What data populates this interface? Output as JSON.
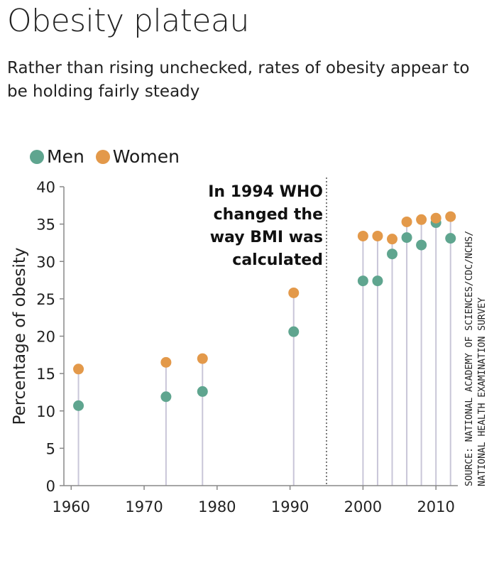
{
  "title": "Obesity plateau",
  "subtitle": "Rather than rising unchecked, rates of obesity appear to be holding fairly steady",
  "legend": {
    "men": "Men",
    "women": "Women"
  },
  "colors": {
    "men": "#5fa58f",
    "women": "#e3994a",
    "stem": "#c9c6d8",
    "axis": "#888888"
  },
  "annotation": {
    "lines": [
      "In 1994 WHO",
      "changed the",
      "way BMI was",
      "calculated"
    ],
    "x": 1995
  },
  "source": {
    "lines": [
      "SOURCE: NATIONAL ACADEMY OF SCIENCES/CDC/NCHS/",
      "NATIONAL HEALTH EXAMINATION SURVEY"
    ]
  },
  "chart_data": {
    "type": "scatter",
    "title": "Obesity plateau",
    "ylabel": "Percentage of obesity",
    "xlabel": "",
    "xlim": [
      1959,
      2013
    ],
    "ylim": [
      0,
      40
    ],
    "xticks": [
      1960,
      1970,
      1980,
      1990,
      2000,
      2010
    ],
    "yticks": [
      0,
      5,
      10,
      15,
      20,
      25,
      30,
      35,
      40
    ],
    "x": [
      1961,
      1973,
      1978,
      1990.5,
      2000,
      2002,
      2004,
      2006,
      2008,
      2010,
      2012
    ],
    "series": [
      {
        "name": "Men",
        "values": [
          10.7,
          11.9,
          12.6,
          20.6,
          27.4,
          27.4,
          31.0,
          33.2,
          32.2,
          35.2,
          33.1
        ]
      },
      {
        "name": "Women",
        "values": [
          15.6,
          16.5,
          17.0,
          25.8,
          33.4,
          33.4,
          33.0,
          35.3,
          35.6,
          35.8,
          36.0
        ]
      }
    ],
    "legend_position": "top-left",
    "grid": false
  }
}
